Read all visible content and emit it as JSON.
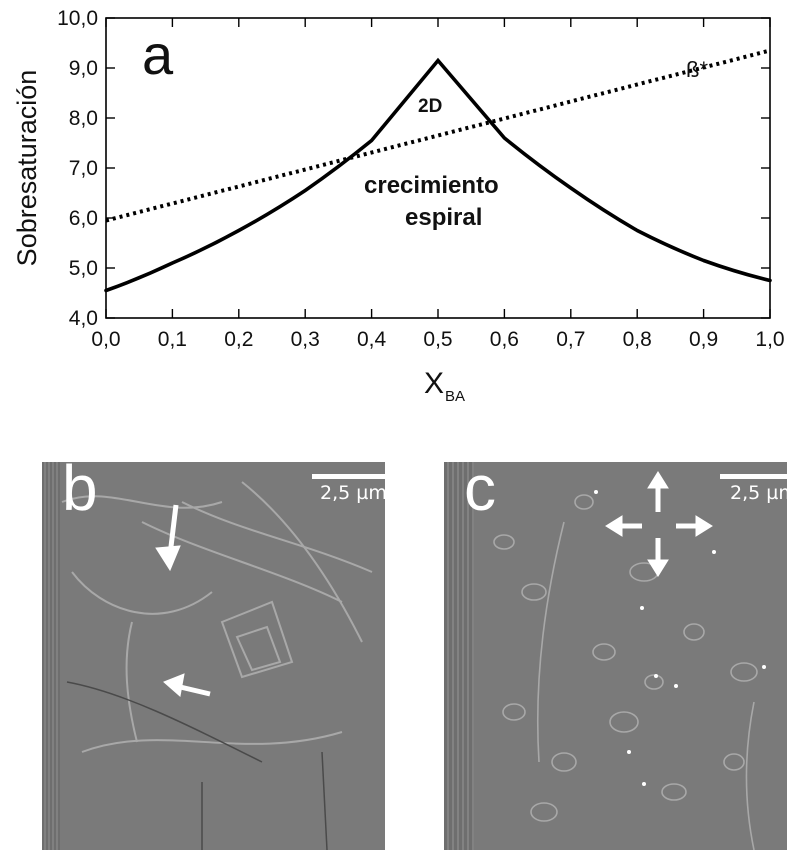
{
  "chart_data": {
    "type": "line",
    "ylabel": "Sobresaturación",
    "xlabel_main": "X",
    "xlabel_sub": "BA",
    "xlim": [
      0,
      1
    ],
    "ylim": [
      4,
      10
    ],
    "x_ticks": [
      "0,0",
      "0,1",
      "0,2",
      "0,3",
      "0,4",
      "0,5",
      "0,6",
      "0,7",
      "0,8",
      "0,9",
      "1,0"
    ],
    "y_ticks": [
      "4,0",
      "5,0",
      "6,0",
      "7,0",
      "8,0",
      "9,0",
      "10,0"
    ],
    "panel_letter": "a",
    "series": [
      {
        "name": "ß*",
        "style": "dotted",
        "x": [
          0,
          1
        ],
        "y": [
          5.95,
          9.35
        ]
      },
      {
        "style": "solid",
        "x": [
          0,
          0.1,
          0.2,
          0.3,
          0.4,
          0.5,
          0.6,
          0.7,
          0.8,
          0.9,
          1.0
        ],
        "y": [
          4.55,
          5.1,
          5.75,
          6.55,
          7.55,
          9.15,
          7.6,
          6.6,
          5.75,
          5.15,
          4.75
        ]
      }
    ],
    "annotations": [
      "2D",
      "crecimiento",
      "espiral"
    ]
  },
  "panels": [
    {
      "letter": "b",
      "scale_label": "2,5 µm"
    },
    {
      "letter": "c",
      "scale_label": "2,5 µm"
    }
  ],
  "colors": {
    "line": "#000000",
    "micrograph_gray": "#7a7a7a",
    "overlay": "#ffffff"
  }
}
